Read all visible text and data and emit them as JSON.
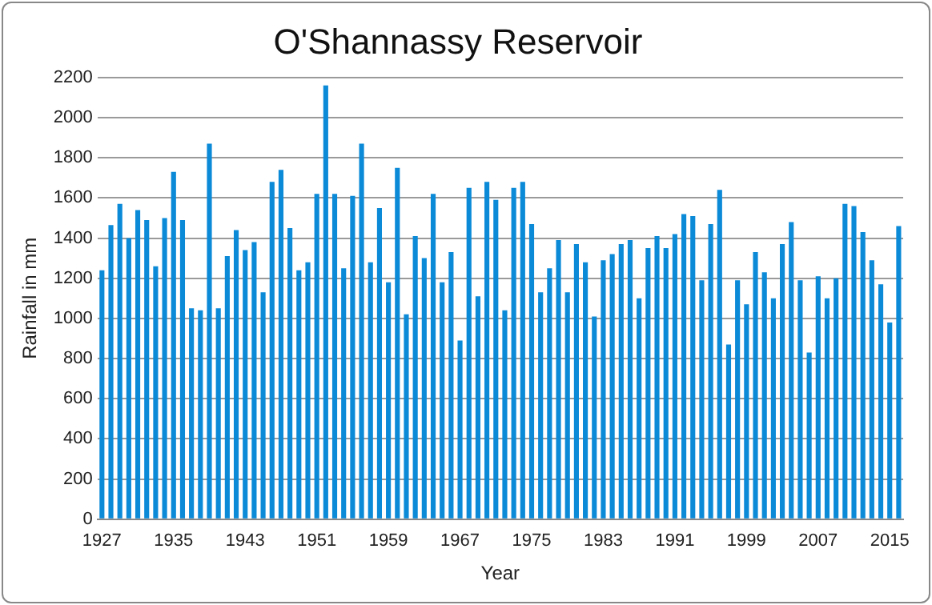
{
  "chart_data": {
    "type": "bar",
    "title": "O'Shannassy Reservoir",
    "xlabel": "Year",
    "ylabel": "Rainfall in mm",
    "categories": [
      "1927",
      null,
      null,
      null,
      null,
      null,
      null,
      null,
      "1935",
      null,
      null,
      null,
      null,
      null,
      null,
      null,
      "1943",
      null,
      null,
      null,
      null,
      null,
      null,
      null,
      "1951",
      null,
      null,
      null,
      null,
      null,
      null,
      null,
      "1959",
      null,
      null,
      null,
      null,
      null,
      null,
      null,
      "1967",
      null,
      null,
      null,
      null,
      null,
      null,
      null,
      "1975",
      null,
      null,
      null,
      null,
      null,
      null,
      null,
      "1983",
      null,
      null,
      null,
      null,
      null,
      null,
      null,
      "1991",
      null,
      null,
      null,
      null,
      null,
      null,
      null,
      "1999",
      null,
      null,
      null,
      null,
      null,
      null,
      null,
      "2007",
      null,
      null,
      null,
      null,
      null,
      null,
      null,
      "2015",
      null
    ],
    "values": [
      1240,
      1465,
      1570,
      1400,
      1540,
      1490,
      1260,
      1500,
      1730,
      1490,
      1050,
      1040,
      1870,
      1050,
      1310,
      1440,
      1340,
      1380,
      1130,
      1680,
      1740,
      1450,
      1240,
      1280,
      1620,
      2160,
      1620,
      1250,
      1610,
      1870,
      1280,
      1550,
      1180,
      1750,
      1020,
      1410,
      1300,
      1620,
      1180,
      1330,
      890,
      1650,
      1110,
      1680,
      1590,
      1040,
      1650,
      1680,
      1470,
      1130,
      1250,
      1390,
      1130,
      1370,
      1280,
      1010,
      1290,
      1320,
      1370,
      1390,
      1100,
      1350,
      1410,
      1350,
      1420,
      1520,
      1510,
      1190,
      1470,
      1640,
      870,
      1190,
      1070,
      1330,
      1230,
      1100,
      1370,
      1480,
      1190,
      830,
      1210,
      1100,
      1200,
      1570,
      1560,
      1430,
      1290,
      1170,
      980,
      1460
    ],
    "color": "#0b8ad8",
    "ylim": [
      0,
      2200
    ],
    "yticks": [
      0,
      200,
      400,
      600,
      800,
      1000,
      1200,
      1400,
      1600,
      1800,
      2000,
      2200
    ],
    "grid": "y",
    "legend": false
  }
}
